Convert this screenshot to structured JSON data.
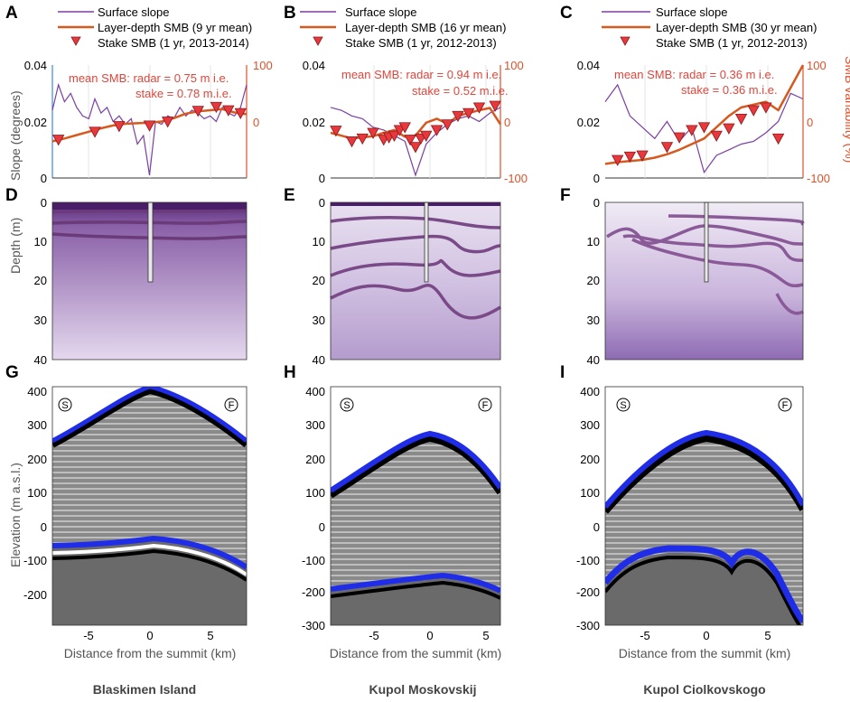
{
  "panel_labels": [
    "A",
    "B",
    "C",
    "D",
    "E",
    "F",
    "G",
    "H",
    "I"
  ],
  "legend": {
    "slope": "Surface slope",
    "layer_A": "Layer-depth SMB (9 yr mean)",
    "stake_A": "Stake SMB (1 yr, 2013-2014)",
    "layer_B": "Layer-depth SMB (16 yr mean)",
    "stake_B": "Stake SMB (1 yr, 2012-2013)",
    "layer_C": "Layer-depth SMB (30 yr mean)",
    "stake_C": "Stake SMB (1 yr, 2012-2013)"
  },
  "annotations": {
    "A_radar": "mean SMB: radar = 0.75 m i.e.",
    "A_stake": "stake = 0.78 m.i.e.",
    "B_radar": "mean SMB: radar = 0.94 m i.e.",
    "B_stake": "stake = 0.52 m.i.e.",
    "C_radar": "mean SMB: radar = 0.36 m i.e.",
    "C_stake": "stake = 0.36 m.i.e."
  },
  "axis_labels": {
    "slope": "Slope (degrees)",
    "smb_var": "SMB variability (%)",
    "depth": "Depth (m)",
    "elevation": "Elevation (m a.s.l.)",
    "distance": "Distance from the summit (km)"
  },
  "markers": {
    "start": "S",
    "finish": "F"
  },
  "sites": [
    "Blaskimen Island",
    "Kupol Moskovskij",
    "Kupol Ciolkovskogo"
  ],
  "colors": {
    "slope": "#7b3fa3",
    "smb": "#d6591f",
    "stake": "#e8383d",
    "radar_layer": "#6b3a78",
    "bed": "#1f2de8"
  },
  "chart_data": [
    {
      "panel": "A",
      "type": "line",
      "title": "",
      "ylabel": "Slope (degrees)",
      "ylim": [
        0,
        0.04
      ],
      "yticks": [
        "0",
        "0.02",
        "0.04"
      ],
      "y2label": "SMB variability (%)",
      "y2lim": [
        -100,
        100
      ],
      "y2ticks": [
        "-100",
        "0",
        "100"
      ],
      "xlim": [
        -8,
        8
      ],
      "series": [
        {
          "name": "Surface slope",
          "x": [
            -8,
            -7.5,
            -7,
            -6.5,
            -6,
            -5.5,
            -5,
            -4.5,
            -4,
            -3.5,
            -3,
            -2.5,
            -2,
            -1.5,
            -1,
            -0.5,
            0,
            0.5,
            1,
            1.5,
            2,
            2.5,
            3,
            3.5,
            4,
            4.5,
            5,
            5.5,
            6,
            6.5,
            7,
            7.5,
            8
          ],
          "values": [
            0.024,
            0.033,
            0.027,
            0.03,
            0.025,
            0.022,
            0.021,
            0.028,
            0.023,
            0.025,
            0.02,
            0.022,
            0.019,
            0.021,
            0.012,
            0.015,
            0.001,
            0.02,
            0.019,
            0.022,
            0.021,
            0.025,
            0.022,
            0.024,
            0.023,
            0.021,
            0.022,
            0.02,
            0.025,
            0.023,
            0.022,
            0.025,
            0.033
          ]
        },
        {
          "name": "Layer-depth SMB (9 yr mean)",
          "axis": "right",
          "x": [
            -8,
            -7,
            -6,
            -5,
            -4,
            -3,
            -2,
            -1,
            0,
            1,
            2,
            3,
            4,
            5,
            6,
            7,
            8
          ],
          "values": [
            -35,
            -30,
            -24,
            -18,
            -12,
            -7,
            -4,
            -3,
            -2,
            0,
            6,
            14,
            18,
            20,
            22,
            16,
            13
          ]
        },
        {
          "name": "Stake SMB (1 yr, 2013-2014)",
          "axis": "right",
          "x": [
            -7.5,
            -4.5,
            -2.5,
            0,
            1.5,
            4,
            5.5,
            6.5,
            7.5
          ],
          "values": [
            -32,
            -18,
            -8,
            -7,
            0,
            19,
            26,
            20,
            15
          ]
        }
      ]
    },
    {
      "panel": "B",
      "type": "line",
      "title": "",
      "ylim": [
        0,
        0.04
      ],
      "yticks": [
        "0",
        "0.02",
        "0.04"
      ],
      "y2lim": [
        -100,
        100
      ],
      "y2ticks": [
        "-100",
        "0",
        "100"
      ],
      "xlim": [
        -8,
        8
      ],
      "series": [
        {
          "name": "Surface slope",
          "x": [
            -8,
            -7,
            -6,
            -5,
            -4,
            -3,
            -2,
            -1,
            0,
            1,
            2,
            3,
            4,
            5,
            6,
            7,
            8
          ],
          "values": [
            0.025,
            0.024,
            0.022,
            0.021,
            0.018,
            0.017,
            0.015,
            0.013,
            0.001,
            0.012,
            0.016,
            0.019,
            0.021,
            0.022,
            0.02,
            0.023,
            0.025
          ]
        },
        {
          "name": "Layer-depth SMB (16 yr mean)",
          "axis": "right",
          "x": [
            -8,
            -7,
            -6,
            -5,
            -4,
            -3,
            -2,
            -1,
            0,
            1,
            2,
            3,
            4,
            5,
            6,
            7,
            8
          ],
          "values": [
            -20,
            -25,
            -30,
            -28,
            -26,
            -20,
            -15,
            -27,
            -25,
            -2,
            5,
            -4,
            10,
            15,
            20,
            24,
            -5
          ]
        },
        {
          "name": "Stake SMB (1 yr, 2012-2013)",
          "axis": "right",
          "x": [
            -7.5,
            -6,
            -5,
            -4,
            -3,
            -2.5,
            -2,
            -1.5,
            -1,
            -0.5,
            0,
            0.5,
            1,
            2,
            3,
            4,
            5,
            6,
            7.5
          ],
          "values": [
            -16,
            -35,
            -30,
            -20,
            -32,
            -28,
            -25,
            -15,
            -10,
            -32,
            -45,
            -30,
            -25,
            -15,
            -5,
            10,
            15,
            25,
            28
          ]
        }
      ]
    },
    {
      "panel": "C",
      "type": "line",
      "title": "",
      "ylim": [
        0,
        0.04
      ],
      "yticks": [
        "0",
        "0.02",
        "0.04"
      ],
      "y2lim": [
        -100,
        100
      ],
      "y2ticks": [
        "-100",
        "0",
        "100"
      ],
      "xlim": [
        -8,
        8
      ],
      "series": [
        {
          "name": "Surface slope",
          "x": [
            -8,
            -7,
            -6,
            -5,
            -4,
            -3,
            -2,
            -1,
            0,
            1,
            2,
            3,
            4,
            5,
            6,
            7,
            8
          ],
          "values": [
            0.027,
            0.033,
            0.022,
            0.018,
            0.014,
            0.02,
            0.013,
            0.018,
            0.002,
            0.008,
            0.01,
            0.012,
            0.013,
            0.016,
            0.02,
            0.03,
            0.028
          ]
        },
        {
          "name": "Layer-depth SMB (30 yr mean)",
          "axis": "right",
          "x": [
            -8,
            -7,
            -6,
            -5,
            -4,
            -3,
            -2,
            -1,
            0,
            1,
            2,
            3,
            4,
            5,
            6,
            7,
            8
          ],
          "values": [
            -75,
            -72,
            -70,
            -68,
            -64,
            -58,
            -50,
            -40,
            -30,
            -10,
            10,
            25,
            30,
            35,
            20,
            60,
            100
          ]
        },
        {
          "name": "Stake SMB (1 yr, 2012-2013)",
          "axis": "right",
          "x": [
            -7,
            -6,
            -5,
            -3,
            -2,
            -1,
            0,
            1,
            2,
            3,
            4,
            5,
            6
          ],
          "values": [
            -68,
            -62,
            -60,
            -45,
            -28,
            -15,
            -10,
            -25,
            -12,
            5,
            20,
            25,
            -30
          ]
        }
      ]
    },
    {
      "panel": "D",
      "type": "heatmap",
      "ylabel": "Depth (m)",
      "ylim": [
        0,
        40
      ],
      "yticks": [
        "0",
        "10",
        "20",
        "30",
        "40"
      ]
    },
    {
      "panel": "E",
      "type": "heatmap",
      "ylim": [
        0,
        40
      ],
      "yticks": [
        "0",
        "10",
        "20",
        "30",
        "40"
      ]
    },
    {
      "panel": "F",
      "type": "heatmap",
      "ylim": [
        0,
        40
      ],
      "yticks": [
        "0",
        "10",
        "20",
        "30",
        "40"
      ]
    },
    {
      "panel": "G",
      "type": "heatmap",
      "xlabel": "Distance from the summit (km)",
      "ylabel": "Elevation (m a.s.l.)",
      "xlim": [
        -8,
        8
      ],
      "xticks": [
        "-5",
        "0",
        "5"
      ],
      "ylim": [
        -290,
        410
      ],
      "yticks": [
        "400",
        "300",
        "200",
        "100",
        "0",
        "-100",
        "-200"
      ]
    },
    {
      "panel": "H",
      "type": "heatmap",
      "xlabel": "Distance from the summit (km)",
      "xlim": [
        -8,
        8
      ],
      "xticks": [
        "-5",
        "0",
        "5"
      ],
      "ylim": [
        -300,
        410
      ],
      "yticks": [
        "400",
        "300",
        "200",
        "100",
        "0",
        "-100",
        "-200",
        "-300"
      ]
    },
    {
      "panel": "I",
      "type": "heatmap",
      "xlabel": "Distance from the summit (km)",
      "xlim": [
        -8,
        8
      ],
      "xticks": [
        "-5",
        "0",
        "5"
      ],
      "ylim": [
        -300,
        410
      ],
      "yticks": [
        "400",
        "300",
        "200",
        "100",
        "0",
        "-100",
        "-200",
        "-300"
      ]
    }
  ]
}
